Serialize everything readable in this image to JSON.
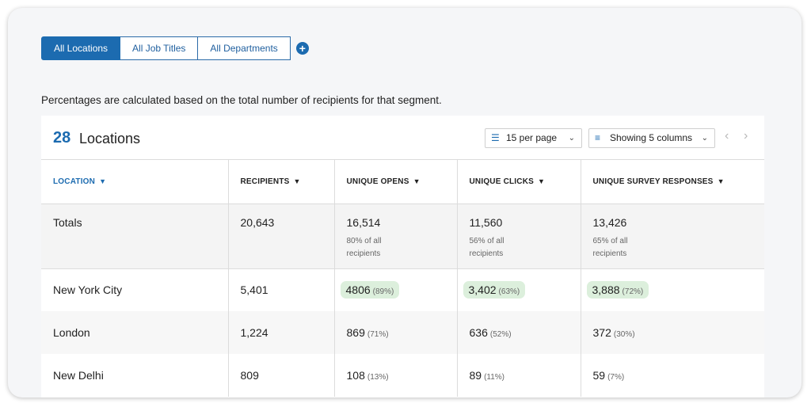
{
  "segments": {
    "items": [
      "All Locations",
      "All Job Titles",
      "All Departments"
    ],
    "active_index": 0,
    "add_symbol": "+"
  },
  "note": "Percentages are calculated based on the total number of recipients for that segment.",
  "card": {
    "count": "28",
    "count_label": "Locations",
    "per_page": "15 per page",
    "columns_label": "Showing 5 columns",
    "prev": "‹",
    "next": "›"
  },
  "table": {
    "headers": [
      "LOCATION",
      "RECIPIENTS",
      "UNIQUE OPENS",
      "UNIQUE CLICKS",
      "UNIQUE SURVEY RESPONSES"
    ],
    "totals": {
      "label": "Totals",
      "recipients": "20,643",
      "opens": "16,514",
      "opens_sub": "80% of all recipients",
      "clicks": "11,560",
      "clicks_sub": "56% of all recipients",
      "responses": "13,426",
      "responses_sub": "65% of all recipients"
    },
    "rows": [
      {
        "location": "New York City",
        "recipients": "5,401",
        "opens": "4806",
        "opens_pct": "(89%)",
        "clicks": "3,402",
        "clicks_pct": "(63%)",
        "responses": "3,888",
        "responses_pct": "(72%)"
      },
      {
        "location": "London",
        "recipients": "1,224",
        "opens": "869",
        "opens_pct": "(71%)",
        "clicks": "636",
        "clicks_pct": "(52%)",
        "responses": "372",
        "responses_pct": "(30%)"
      },
      {
        "location": "New Delhi",
        "recipients": "809",
        "opens": "108",
        "opens_pct": "(13%)",
        "clicks": "89",
        "clicks_pct": "(11%)",
        "responses": "59",
        "responses_pct": "(7%)"
      }
    ]
  },
  "colors": {
    "accent": "#1c6bb0",
    "highlight": "#dcefdc"
  }
}
